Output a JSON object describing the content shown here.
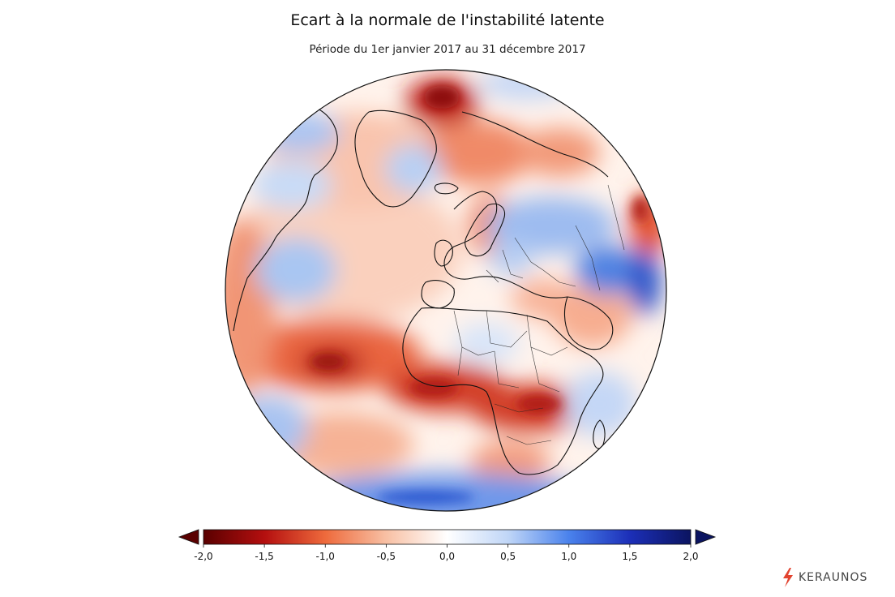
{
  "header": {
    "title": "Ecart à la normale de l'instabilité latente",
    "subtitle": "Période du 1er janvier 2017 au 31 décembre 2017"
  },
  "legend": {
    "ticks": [
      "-2,0",
      "-1,5",
      "-1,0",
      "-0,5",
      "0,0",
      "0,5",
      "1,0",
      "1,5",
      "2,0"
    ],
    "min": -2.0,
    "max": 2.0,
    "colors": {
      "neg_extreme": "#5a0000",
      "neg_strong": "#b40f0f",
      "neg_mid": "#ee6a3c",
      "neg_light": "#f8c0a4",
      "neutral": "#ffffff",
      "pos_light": "#c0d6f7",
      "pos_mid": "#4a82ec",
      "pos_strong": "#1c2fb8",
      "pos_extreme": "#0b1460"
    }
  },
  "map": {
    "projection": "orthographic",
    "variable": "instabilité latente"
  },
  "brand": {
    "name": "KERAUNOS",
    "icon": "lightning-bolt-icon",
    "color": "#e2432f"
  }
}
